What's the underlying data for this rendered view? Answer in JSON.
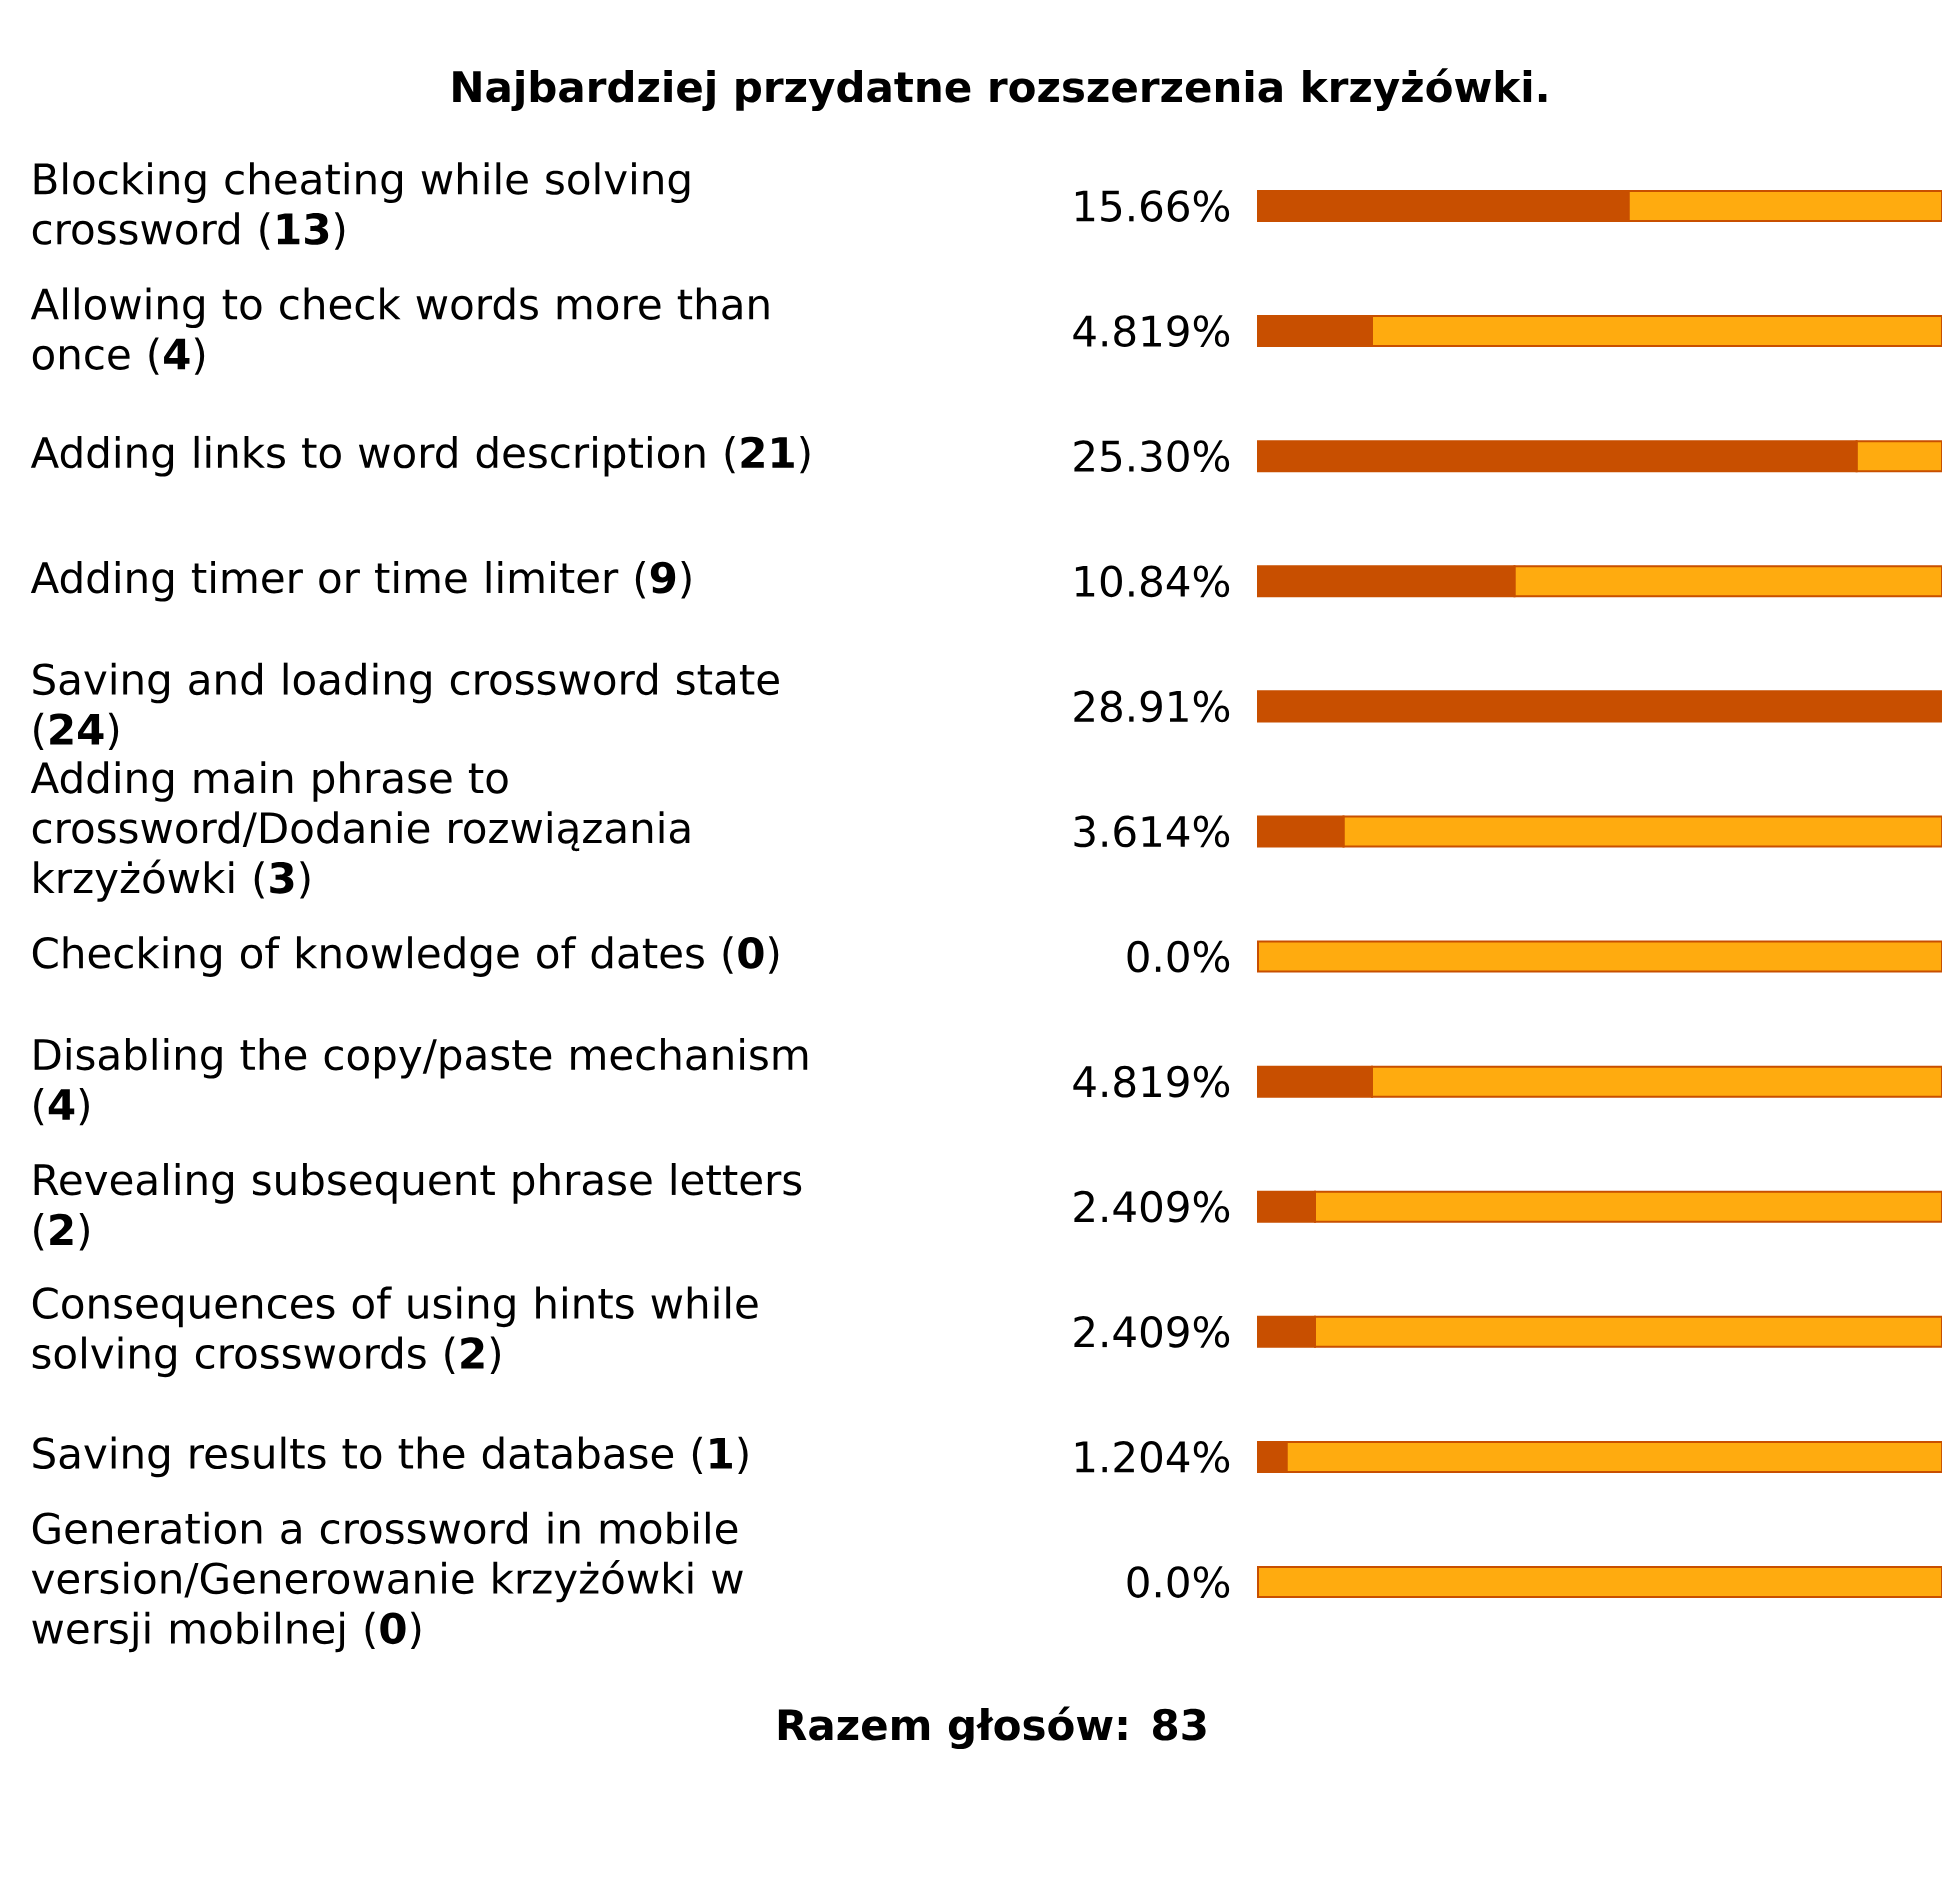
{
  "chart_data": {
    "type": "bar",
    "orientation": "horizontal",
    "stacked": true,
    "title": "Najbardziej przydatne rozszerzenia krzyżówki.",
    "categories": [
      "Blocking cheating while solving crossword (**13**)",
      "Allowing to check words more than once (**4**)",
      "Adding links to word description (**21**)",
      "Adding timer or time limiter (**9**)",
      "Saving and loading crossword state (**24**)",
      "Adding main phrase to crossword/Dodanie rozwiązania krzyżówki (**3**)",
      "Checking of knowledge of dates (**0**)",
      "Disabling the copy/paste mechanism (**4**)",
      "Revealing subsequent phrase letters (**2**)",
      "Consequences of using hints while solving crosswords (**2**)",
      "Saving results to the database (**1**)",
      "Generation a crossword in mobile version/Generowanie krzyżówki w wersji mobilnej (**0**)"
    ],
    "series": [
      {
        "color": "#c84f00",
        "values": [
          15.66,
          4.819,
          25.3,
          10.84,
          28.91,
          3.614,
          0.0,
          4.819,
          2.409,
          2.409,
          1.204,
          0.0
        ],
        "value_labels": [
          "15.66%",
          "4.819%",
          "25.30%",
          "10.84%",
          "28.91%",
          "3.614%",
          "0.0%",
          "4.819%",
          "2.409%",
          "2.409%",
          "1.204%",
          "0.0%"
        ]
      },
      {
        "color": "#ffab0f",
        "values": [
          13.25,
          24.09,
          3.61,
          18.07,
          0,
          25.3,
          28.91,
          24.09,
          26.5,
          26.5,
          27.71,
          28.91
        ]
      }
    ],
    "xlim": [
      0,
      28.91
    ],
    "tick_labels": "y",
    "annotations": [
      "Razem głosów: 83"
    ]
  }
}
